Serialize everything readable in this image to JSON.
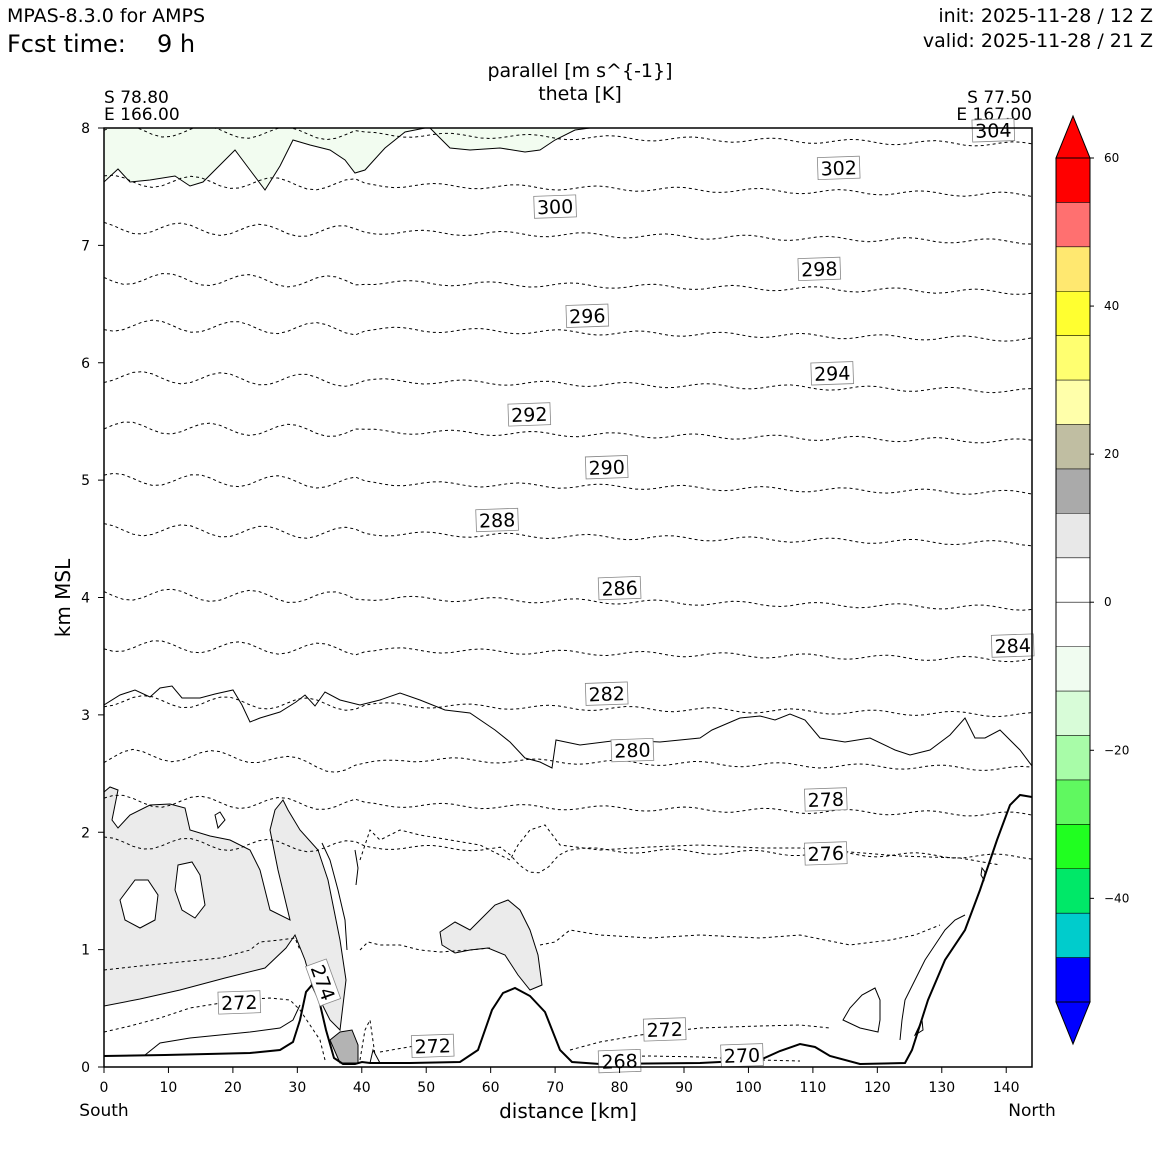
{
  "header": {
    "model": "MPAS-8.3.0 for AMPS",
    "fcst_label": "Fcst time:",
    "fcst_value": "9 h",
    "init": "init: 2025-11-28 / 12 Z",
    "valid": "valid: 2025-11-28 / 21 Z"
  },
  "chart_data": {
    "type": "cross-section contour",
    "title_line1": "parallel [m s^{-1}]",
    "title_line2": "theta [K]",
    "xlabel": "distance [km]",
    "ylabel": "km MSL",
    "xlim": [
      0,
      144
    ],
    "ylim": [
      0,
      8
    ],
    "xticks": [
      0,
      10,
      20,
      30,
      40,
      50,
      60,
      70,
      80,
      90,
      100,
      110,
      120,
      130,
      140
    ],
    "yticks": [
      0,
      1,
      2,
      3,
      4,
      5,
      6,
      7,
      8
    ],
    "left_endpoint": {
      "lat": "S 78.80",
      "lon": "E 166.00",
      "direction": "South"
    },
    "right_endpoint": {
      "lat": "S 77.50",
      "lon": "E 167.00",
      "direction": "North"
    },
    "theta_labels": [
      {
        "value": "304",
        "x": 138,
        "z": 7.98
      },
      {
        "value": "302",
        "x": 114,
        "z": 7.66
      },
      {
        "value": "300",
        "x": 70,
        "z": 7.33
      },
      {
        "value": "298",
        "x": 111,
        "z": 6.8
      },
      {
        "value": "296",
        "x": 75,
        "z": 6.4
      },
      {
        "value": "294",
        "x": 113,
        "z": 5.91
      },
      {
        "value": "292",
        "x": 66,
        "z": 5.56
      },
      {
        "value": "290",
        "x": 78,
        "z": 5.11
      },
      {
        "value": "288",
        "x": 61,
        "z": 4.66
      },
      {
        "value": "286",
        "x": 80,
        "z": 4.08
      },
      {
        "value": "284",
        "x": 141,
        "z": 3.59
      },
      {
        "value": "282",
        "x": 78,
        "z": 3.18
      },
      {
        "value": "280",
        "x": 82,
        "z": 2.7
      },
      {
        "value": "278",
        "x": 112,
        "z": 2.28
      },
      {
        "value": "276",
        "x": 112,
        "z": 1.82
      },
      {
        "value": "274",
        "x": 34,
        "z": 0.72
      },
      {
        "value": "272",
        "x": 21,
        "z": 0.55
      },
      {
        "value": "272",
        "x": 51,
        "z": 0.18
      },
      {
        "value": "272",
        "x": 87,
        "z": 0.32
      },
      {
        "value": "270",
        "x": 99,
        "z": 0.1
      },
      {
        "value": "268",
        "x": 80,
        "z": 0.05
      }
    ],
    "colorbar": {
      "label_ticks": [
        "60",
        "40",
        "20",
        "0",
        "−20",
        "−40"
      ],
      "tick_values": [
        60,
        40,
        20,
        0,
        -20,
        -40
      ],
      "range": [
        -60,
        60
      ],
      "levels_top_to_bottom": [
        {
          "range": "54 to 60",
          "color": "#ff0000"
        },
        {
          "range": "48 to 54",
          "color": "#ff7070"
        },
        {
          "range": "42 to 48",
          "color": "#ffe870"
        },
        {
          "range": "36 to 42",
          "color": "#ffff30"
        },
        {
          "range": "30 to 36",
          "color": "#ffff70"
        },
        {
          "range": "24 to 30",
          "color": "#ffffaa"
        },
        {
          "range": "18 to 24",
          "color": "#c0bea2"
        },
        {
          "range": "12 to 18",
          "color": "#aaaaaa"
        },
        {
          "range": "6 to 12",
          "color": "#e8e8e8"
        },
        {
          "range": "0 to 6",
          "color": "#ffffff"
        },
        {
          "range": "-6 to 0",
          "color": "#ffffff"
        },
        {
          "range": "-12 to -6",
          "color": "#f0fcf0"
        },
        {
          "range": "-18 to -12",
          "color": "#d8fcd8"
        },
        {
          "range": "-24 to -18",
          "color": "#a8fca8"
        },
        {
          "range": "-30 to -24",
          "color": "#60f860"
        },
        {
          "range": "-36 to -30",
          "color": "#20ff20"
        },
        {
          "range": "-42 to -36",
          "color": "#00e868"
        },
        {
          "range": "-48 to -42",
          "color": "#00cccc"
        },
        {
          "range": "-54 to -48",
          "color": "#0000ff"
        }
      ],
      "over_color": "#ff0000",
      "under_color": "#0000ff"
    },
    "colors": {
      "shade_light": "#ebebeb",
      "shade_dark": "#b3b3b3",
      "shade_green": "#f2fcf0"
    }
  }
}
